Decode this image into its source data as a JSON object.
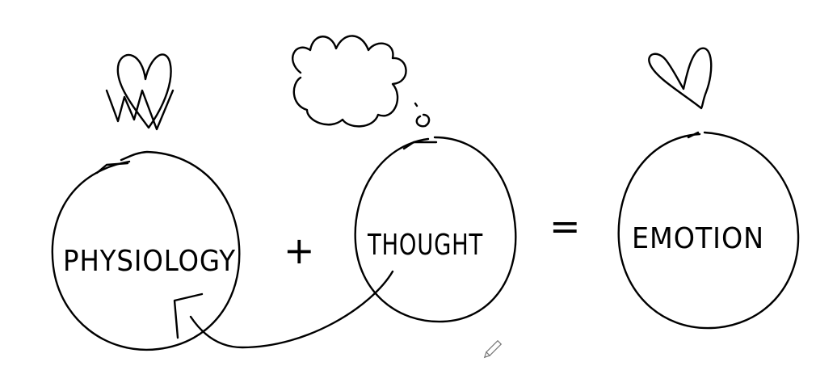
{
  "diagram": {
    "nodes": [
      {
        "id": "physiology",
        "label": "PHYSIOLOGY",
        "icon": "heart-scribble-icon"
      },
      {
        "id": "thought",
        "label": "THOUGHT",
        "icon": "thought-cloud-icon"
      },
      {
        "id": "emotion",
        "label": "EMOTION",
        "icon": "heart-icon"
      }
    ],
    "operators": {
      "plus": "+",
      "equals": "="
    },
    "edges": [
      {
        "from": "thought",
        "to": "physiology",
        "style": "curved-arrow"
      }
    ]
  },
  "tool": {
    "icon": "pencil-cursor-icon"
  }
}
